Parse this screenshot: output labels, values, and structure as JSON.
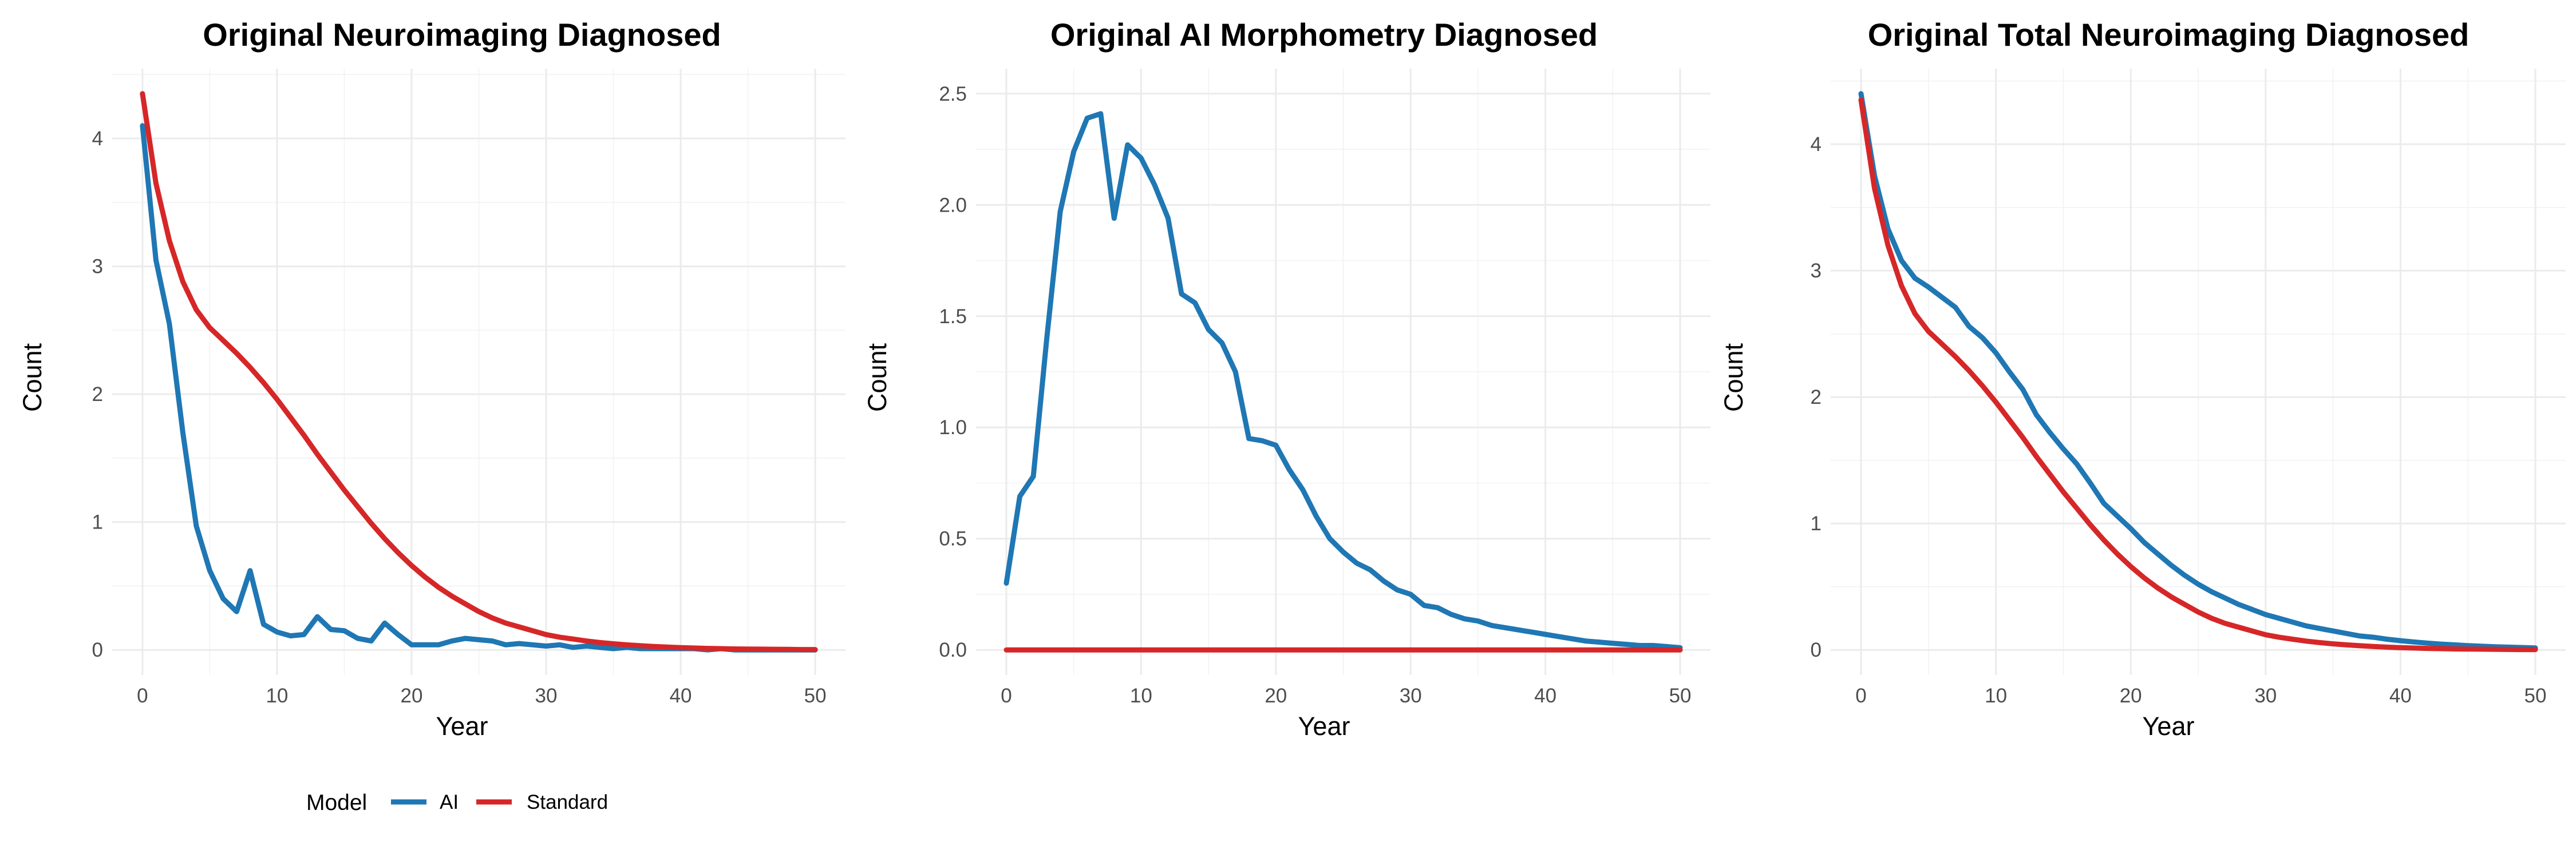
{
  "legend": {
    "title": "Model",
    "entries": [
      {
        "label": "AI",
        "color": "#1f77b4"
      },
      {
        "label": "Standard",
        "color": "#d62728"
      }
    ]
  },
  "chart_data": [
    {
      "type": "line",
      "title": "Original Neuroimaging Diagnosed",
      "xlabel": "Year",
      "ylabel": "Count",
      "xlim": [
        0,
        50
      ],
      "ylim": [
        0,
        4.35
      ],
      "xticks": [
        0,
        10,
        20,
        30,
        40,
        50
      ],
      "yticks": [
        0,
        1,
        2,
        3,
        4
      ],
      "grid": true,
      "legend_position": "bottom-left",
      "series": [
        {
          "name": "AI",
          "color": "#1f77b4",
          "x": [
            0,
            1,
            2,
            3,
            4,
            5,
            6,
            7,
            8,
            9,
            10,
            11,
            12,
            13,
            14,
            15,
            16,
            17,
            18,
            19,
            20,
            21,
            22,
            23,
            24,
            25,
            26,
            27,
            28,
            29,
            30,
            31,
            32,
            33,
            34,
            35,
            36,
            37,
            38,
            39,
            40,
            41,
            42,
            43,
            44,
            45,
            46,
            47,
            48,
            49,
            50
          ],
          "y": [
            4.1,
            3.05,
            2.55,
            1.7,
            0.97,
            0.62,
            0.4,
            0.3,
            0.62,
            0.2,
            0.14,
            0.11,
            0.12,
            0.26,
            0.16,
            0.15,
            0.09,
            0.07,
            0.21,
            0.12,
            0.04,
            0.04,
            0.04,
            0.07,
            0.09,
            0.08,
            0.07,
            0.04,
            0.05,
            0.04,
            0.03,
            0.04,
            0.02,
            0.03,
            0.02,
            0.01,
            0.02,
            0.01,
            0.01,
            0.01,
            0.01,
            0.01,
            0.0,
            0.01,
            0.0,
            0.0,
            0.0,
            0.0,
            0.0,
            0.0,
            0.0
          ]
        },
        {
          "name": "Standard",
          "color": "#d62728",
          "x": [
            0,
            1,
            2,
            3,
            4,
            5,
            6,
            7,
            8,
            9,
            10,
            11,
            12,
            13,
            14,
            15,
            16,
            17,
            18,
            19,
            20,
            21,
            22,
            23,
            24,
            25,
            26,
            27,
            28,
            29,
            30,
            31,
            32,
            33,
            34,
            35,
            36,
            37,
            38,
            39,
            40,
            41,
            42,
            43,
            44,
            45,
            46,
            47,
            48,
            49,
            50
          ],
          "y": [
            4.35,
            3.65,
            3.2,
            2.88,
            2.66,
            2.52,
            2.42,
            2.32,
            2.21,
            2.09,
            1.96,
            1.82,
            1.68,
            1.53,
            1.39,
            1.25,
            1.12,
            0.99,
            0.87,
            0.76,
            0.66,
            0.57,
            0.49,
            0.42,
            0.36,
            0.3,
            0.25,
            0.21,
            0.18,
            0.15,
            0.12,
            0.1,
            0.085,
            0.07,
            0.058,
            0.048,
            0.04,
            0.033,
            0.027,
            0.022,
            0.018,
            0.015,
            0.012,
            0.01,
            0.008,
            0.007,
            0.006,
            0.005,
            0.004,
            0.003,
            0.003
          ]
        }
      ]
    },
    {
      "type": "line",
      "title": "Original AI Morphometry Diagnosed",
      "xlabel": "Year",
      "ylabel": "Count",
      "xlim": [
        0,
        50
      ],
      "ylim": [
        0,
        2.5
      ],
      "xticks": [
        0,
        10,
        20,
        30,
        40,
        50
      ],
      "yticks": [
        0.0,
        0.5,
        1.0,
        1.5,
        2.0,
        2.5
      ],
      "ytick_labels": [
        "0.0",
        "0.5",
        "1.0",
        "1.5",
        "2.0",
        "2.5"
      ],
      "grid": true,
      "series": [
        {
          "name": "AI",
          "color": "#1f77b4",
          "x": [
            0,
            1,
            2,
            3,
            4,
            5,
            6,
            7,
            8,
            9,
            10,
            11,
            12,
            13,
            14,
            15,
            16,
            17,
            18,
            19,
            20,
            21,
            22,
            23,
            24,
            25,
            26,
            27,
            28,
            29,
            30,
            31,
            32,
            33,
            34,
            35,
            36,
            37,
            38,
            39,
            40,
            41,
            42,
            43,
            44,
            45,
            46,
            47,
            48,
            49,
            50
          ],
          "y": [
            0.3,
            0.69,
            0.78,
            1.4,
            1.97,
            2.24,
            2.39,
            2.41,
            1.94,
            2.27,
            2.21,
            2.09,
            1.94,
            1.6,
            1.56,
            1.44,
            1.38,
            1.25,
            0.95,
            0.94,
            0.92,
            0.81,
            0.72,
            0.6,
            0.5,
            0.44,
            0.39,
            0.36,
            0.31,
            0.27,
            0.25,
            0.2,
            0.19,
            0.16,
            0.14,
            0.13,
            0.11,
            0.1,
            0.09,
            0.08,
            0.07,
            0.06,
            0.05,
            0.04,
            0.035,
            0.03,
            0.025,
            0.02,
            0.02,
            0.015,
            0.01
          ]
        },
        {
          "name": "Standard",
          "color": "#d62728",
          "x": [
            0,
            50
          ],
          "y": [
            0.0,
            0.0
          ]
        }
      ]
    },
    {
      "type": "line",
      "title": "Original Total Neuroimaging Diagnosed",
      "xlabel": "Year",
      "ylabel": "Count",
      "xlim": [
        0,
        50
      ],
      "ylim": [
        0,
        4.4
      ],
      "xticks": [
        0,
        10,
        20,
        30,
        40,
        50
      ],
      "yticks": [
        0,
        1,
        2,
        3,
        4
      ],
      "grid": true,
      "series": [
        {
          "name": "AI",
          "color": "#1f77b4",
          "x": [
            0,
            1,
            2,
            3,
            4,
            5,
            6,
            7,
            8,
            9,
            10,
            11,
            12,
            13,
            14,
            15,
            16,
            17,
            18,
            19,
            20,
            21,
            22,
            23,
            24,
            25,
            26,
            27,
            28,
            29,
            30,
            31,
            32,
            33,
            34,
            35,
            36,
            37,
            38,
            39,
            40,
            41,
            42,
            43,
            44,
            45,
            46,
            47,
            48,
            49,
            50
          ],
          "y": [
            4.4,
            3.75,
            3.33,
            3.08,
            2.94,
            2.87,
            2.79,
            2.71,
            2.56,
            2.47,
            2.35,
            2.2,
            2.06,
            1.86,
            1.72,
            1.59,
            1.47,
            1.32,
            1.16,
            1.06,
            0.96,
            0.85,
            0.76,
            0.67,
            0.59,
            0.52,
            0.46,
            0.41,
            0.36,
            0.32,
            0.28,
            0.25,
            0.22,
            0.19,
            0.17,
            0.15,
            0.13,
            0.11,
            0.1,
            0.085,
            0.073,
            0.063,
            0.054,
            0.046,
            0.04,
            0.034,
            0.029,
            0.025,
            0.022,
            0.019,
            0.016
          ]
        },
        {
          "name": "Standard",
          "color": "#d62728",
          "x": [
            0,
            1,
            2,
            3,
            4,
            5,
            6,
            7,
            8,
            9,
            10,
            11,
            12,
            13,
            14,
            15,
            16,
            17,
            18,
            19,
            20,
            21,
            22,
            23,
            24,
            25,
            26,
            27,
            28,
            29,
            30,
            31,
            32,
            33,
            34,
            35,
            36,
            37,
            38,
            39,
            40,
            41,
            42,
            43,
            44,
            45,
            46,
            47,
            48,
            49,
            50
          ],
          "y": [
            4.35,
            3.65,
            3.2,
            2.88,
            2.66,
            2.52,
            2.42,
            2.32,
            2.21,
            2.09,
            1.96,
            1.82,
            1.68,
            1.53,
            1.39,
            1.25,
            1.12,
            0.99,
            0.87,
            0.76,
            0.66,
            0.57,
            0.49,
            0.42,
            0.36,
            0.3,
            0.25,
            0.21,
            0.18,
            0.15,
            0.12,
            0.1,
            0.085,
            0.07,
            0.058,
            0.048,
            0.04,
            0.033,
            0.027,
            0.022,
            0.018,
            0.015,
            0.012,
            0.01,
            0.008,
            0.007,
            0.006,
            0.005,
            0.004,
            0.003,
            0.003
          ]
        }
      ]
    }
  ]
}
